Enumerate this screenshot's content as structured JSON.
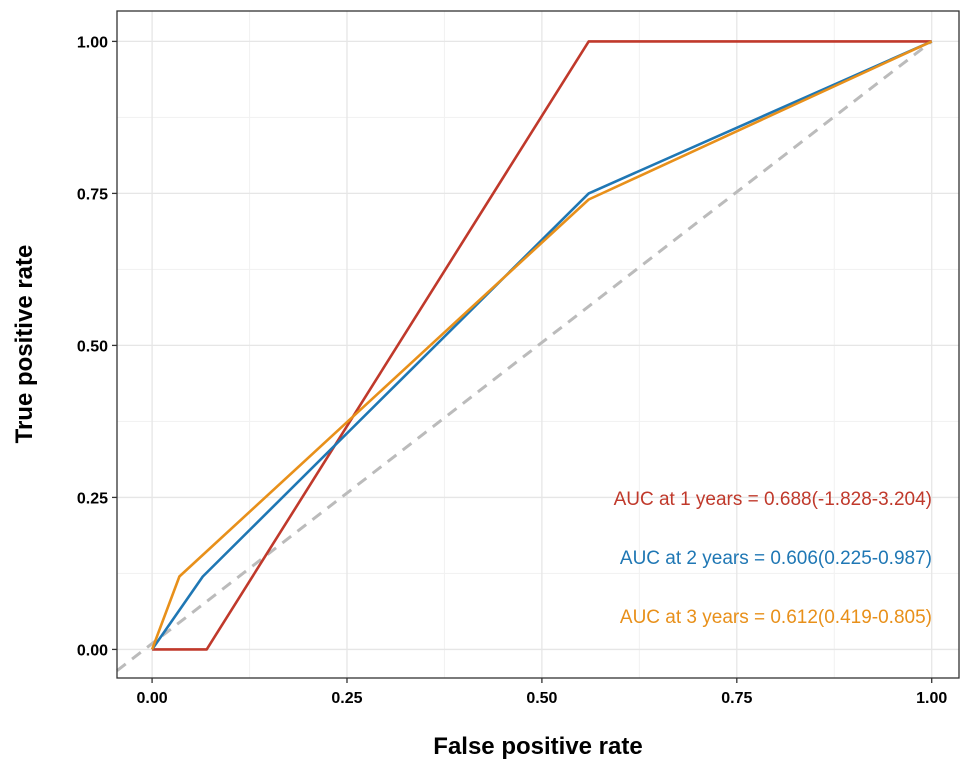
{
  "chart_data": {
    "type": "line",
    "title": "",
    "xlabel": "False positive rate",
    "ylabel": "True positive rate",
    "xlim": [
      -0.045,
      1.035
    ],
    "ylim": [
      -0.047,
      1.05
    ],
    "xticks": [
      "0.00",
      "0.25",
      "0.50",
      "0.75",
      "1.00"
    ],
    "yticks": [
      "0.00",
      "0.25",
      "0.50",
      "0.75",
      "1.00"
    ],
    "grid": true,
    "series": [
      {
        "color": "#c0392b",
        "points": [
          [
            0.0,
            0.0
          ],
          [
            0.07,
            0.0
          ],
          [
            0.56,
            1.0
          ],
          [
            1.0,
            1.0
          ]
        ]
      },
      {
        "color": "#1f77b4",
        "points": [
          [
            0.0,
            0.0
          ],
          [
            0.065,
            0.12
          ],
          [
            0.56,
            0.75
          ],
          [
            1.0,
            1.0
          ]
        ]
      },
      {
        "color": "#e8901a",
        "points": [
          [
            0.0,
            0.0
          ],
          [
            0.035,
            0.12
          ],
          [
            0.56,
            0.74
          ],
          [
            1.0,
            1.0
          ]
        ]
      },
      {
        "color": "#bbbbbb",
        "dashed": true,
        "points": [
          [
            -0.045,
            -0.035
          ],
          [
            1.0,
            1.0
          ]
        ]
      }
    ],
    "annotations": [
      {
        "text": "AUC at 1 years = 0.688(-1.828-3.204)",
        "color": "#c0392b"
      },
      {
        "text": "AUC at 2 years = 0.606(0.225-0.987)",
        "color": "#1f77b4"
      },
      {
        "text": "AUC at 3 years = 0.612(0.419-0.805)",
        "color": "#e8901a"
      }
    ]
  }
}
